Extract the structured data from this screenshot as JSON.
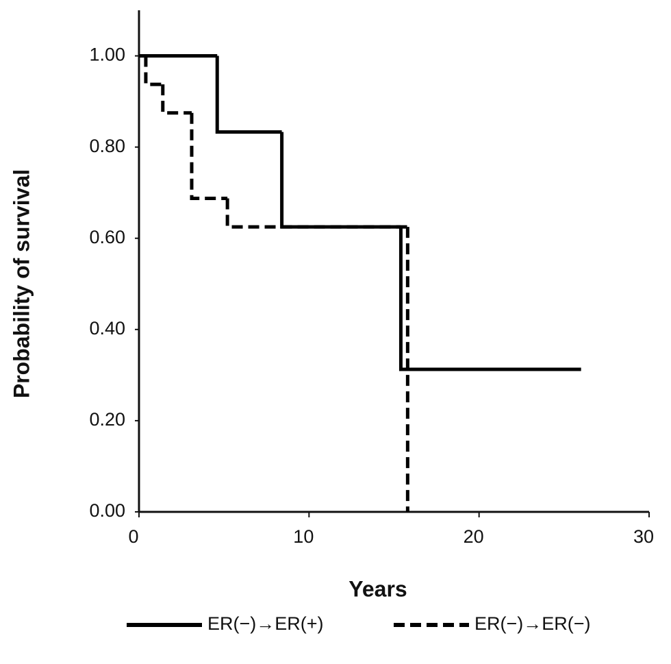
{
  "chart_data": {
    "type": "step",
    "xlabel": "Years",
    "ylabel": "Probability of survival",
    "xlim": [
      0,
      30
    ],
    "ylim": [
      0,
      1.1
    ],
    "xticks": [
      0,
      10,
      20,
      30
    ],
    "yticks": [
      {
        "value": 0,
        "label": "0.00"
      },
      {
        "value": 0.2,
        "label": "0.20"
      },
      {
        "value": 0.4,
        "label": "0.40"
      },
      {
        "value": 0.6,
        "label": "0.60"
      },
      {
        "value": 0.8,
        "label": "0.80"
      },
      {
        "value": 1,
        "label": "1.00"
      }
    ],
    "grid": false,
    "series": [
      {
        "name": "ER(−)→ER(+)",
        "color": "#000000",
        "dash": false,
        "x": [
          0,
          4.6,
          8.4,
          15.4,
          26
        ],
        "values": [
          1,
          0.833,
          0.625,
          0.3125,
          0.3125
        ]
      },
      {
        "name": "ER(−)→ER(−)",
        "color": "#000000",
        "dash": true,
        "x": [
          0,
          0.4,
          1.4,
          3.1,
          5.2,
          15.8
        ],
        "values": [
          1,
          0.9375,
          0.875,
          0.6875,
          0.625,
          0
        ]
      }
    ]
  }
}
